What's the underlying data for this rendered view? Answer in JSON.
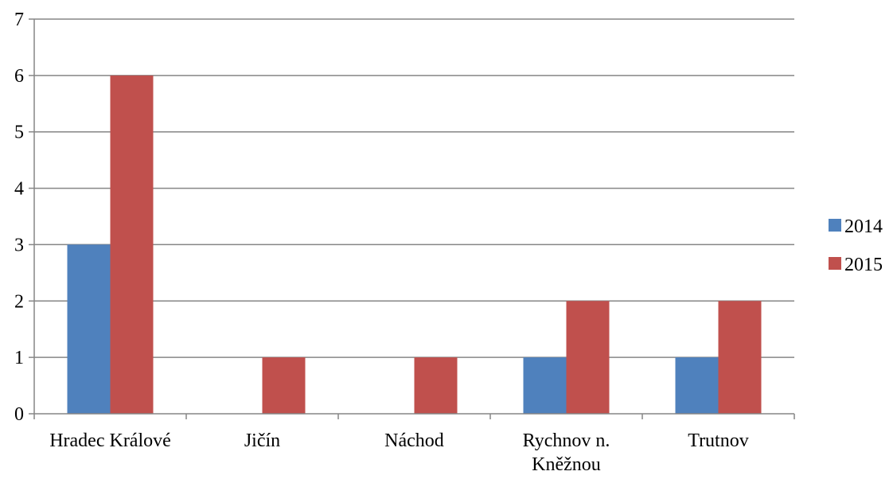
{
  "chart_data": {
    "type": "bar",
    "categories": [
      "Hradec Králové",
      "Jičín",
      "Náchod",
      "Rychnov n. Kněžnou",
      "Trutnov"
    ],
    "category_lines": [
      [
        "Hradec Králové"
      ],
      [
        "Jičín"
      ],
      [
        "Náchod"
      ],
      [
        "Rychnov n.",
        "Kněžnou"
      ],
      [
        "Trutnov"
      ]
    ],
    "series": [
      {
        "name": "2014",
        "color": "#4F81BD",
        "values": [
          3,
          0,
          0,
          1,
          1
        ]
      },
      {
        "name": "2015",
        "color": "#C0504D",
        "values": [
          6,
          1,
          1,
          2,
          2
        ]
      }
    ],
    "yticks": [
      "0",
      "1",
      "2",
      "3",
      "4",
      "5",
      "6",
      "7"
    ],
    "ylim": [
      0,
      7
    ],
    "grid": true,
    "legend_position": "right",
    "title": "",
    "xlabel": "",
    "ylabel": ""
  }
}
